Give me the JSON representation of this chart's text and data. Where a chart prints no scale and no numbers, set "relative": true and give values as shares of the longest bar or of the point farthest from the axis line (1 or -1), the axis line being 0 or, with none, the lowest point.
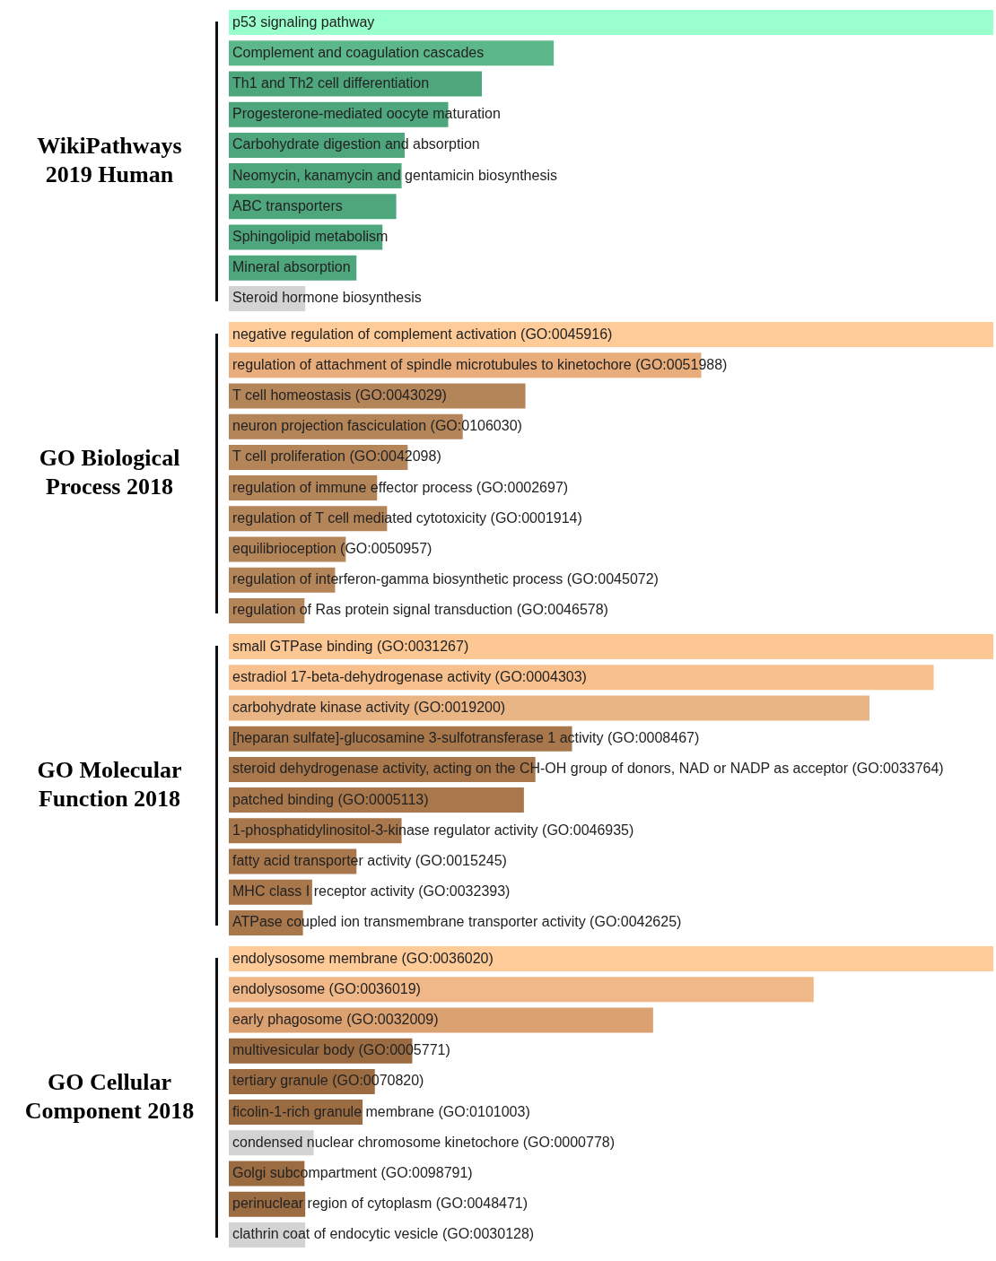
{
  "chart_data": [
    {
      "type": "bar",
      "title": "WikiPathways 2019 Human",
      "orientation": "horizontal",
      "relative": true,
      "categories": [
        "p53 signaling pathway",
        "Complement and coagulation cascades",
        "Th1 and Th2 cell differentiation",
        "Progesterone-mediated oocyte maturation",
        "Carbohydrate digestion and absorption",
        "Neomycin, kanamycin and gentamicin biosynthesis",
        "ABC transporters",
        "Sphingolipid metabolism",
        "Mineral absorption",
        "Steroid hormone biosynthesis"
      ],
      "values": [
        1,
        0.425,
        0.331,
        0.287,
        0.23,
        0.226,
        0.219,
        0.201,
        0.167,
        0.1
      ],
      "colors": [
        "#99ffcc",
        "#5cb88a",
        "#4ea67c",
        "#4ea67c",
        "#4ea67c",
        "#4ea67c",
        "#4ea67c",
        "#4ea67c",
        "#4ea67c",
        "#d3d3d3"
      ]
    },
    {
      "type": "bar",
      "title": "GO Biological Process 2018",
      "orientation": "horizontal",
      "relative": true,
      "categories": [
        "negative regulation of complement activation (GO:0045916)",
        "regulation of attachment of spindle microtubules to kinetochore (GO:0051988)",
        "T cell homeostasis (GO:0043029)",
        "neuron projection fasciculation (GO:0106030)",
        "T cell proliferation (GO:0042098)",
        "regulation of immune effector process (GO:0002697)",
        "regulation of T cell mediated cytotoxicity (GO:0001914)",
        "equilibrioception (GO:0050957)",
        "regulation of interferon-gamma biosynthetic process (GO:0045072)",
        "regulation of Ras protein signal transduction (GO:0046578)"
      ],
      "values": [
        1,
        0.618,
        0.388,
        0.306,
        0.234,
        0.194,
        0.207,
        0.153,
        0.139,
        0.099
      ],
      "colors": [
        "#ffcc99",
        "#e8ad7a",
        "#b5855a",
        "#b5855a",
        "#b5855a",
        "#b5855a",
        "#b5855a",
        "#b5855a",
        "#b5855a",
        "#b5855a"
      ]
    },
    {
      "type": "bar",
      "title": "GO Molecular Function 2018",
      "orientation": "horizontal",
      "relative": true,
      "categories": [
        "small GTPase binding (GO:0031267)",
        "estradiol 17-beta-dehydrogenase activity (GO:0004303)",
        "carbohydrate kinase activity (GO:0019200)",
        "[heparan sulfate]-glucosamine 3-sulfotransferase 1 activity (GO:0008467)",
        "steroid dehydrogenase activity, acting on the CH-OH group of donors, NAD or NADP as acceptor (GO:0033764)",
        "patched binding (GO:0005113)",
        "1-phosphatidylinositol-3-kinase regulator activity (GO:0046935)",
        "fatty acid transporter activity (GO:0015245)",
        "MHC class I receptor activity (GO:0032393)",
        "ATPase coupled ion transmembrane transporter activity (GO:0042625)"
      ],
      "values": [
        1,
        0.922,
        0.838,
        0.449,
        0.401,
        0.386,
        0.226,
        0.167,
        0.109,
        0.097
      ],
      "colors": [
        "#fcc792",
        "#f7c08c",
        "#eab585",
        "#a8774b",
        "#a8774b",
        "#a8774b",
        "#a8774b",
        "#a8774b",
        "#a8774b",
        "#a8774b"
      ]
    },
    {
      "type": "bar",
      "title": "GO Cellular Component 2018",
      "orientation": "horizontal",
      "relative": true,
      "categories": [
        "endolysosome membrane (GO:0036020)",
        "endolysosome (GO:0036019)",
        "early phagosome (GO:0032009)",
        "multivesicular body (GO:0005771)",
        "tertiary granule (GO:0070820)",
        "ficolin-1-rich granule membrane (GO:0101003)",
        "condensed nuclear chromosome kinetochore (GO:0000778)",
        "Golgi subcompartment (GO:0098791)",
        "perinuclear region of cytoplasm (GO:0048471)",
        "clathrin coat of endocytic vesicle (GO:0030128)"
      ],
      "values": [
        1,
        0.765,
        0.555,
        0.24,
        0.191,
        0.175,
        0.111,
        0.099,
        0.1,
        0.1
      ],
      "colors": [
        "#ffcc99",
        "#f0b888",
        "#dba170",
        "#9b6b42",
        "#9b6b42",
        "#9b6b42",
        "#d3d3d3",
        "#9b6b42",
        "#9b6b42",
        "#d3d3d3"
      ]
    }
  ]
}
